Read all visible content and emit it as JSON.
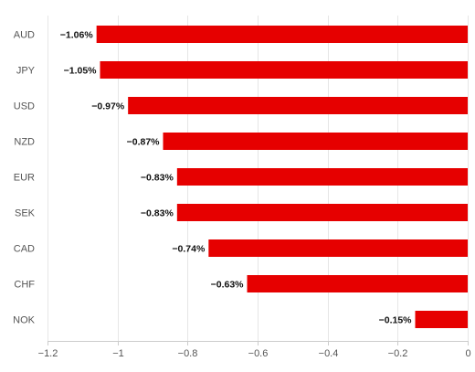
{
  "chart_data": {
    "type": "bar",
    "orientation": "horizontal",
    "categories": [
      "AUD",
      "JPY",
      "USD",
      "NZD",
      "EUR",
      "SEK",
      "CAD",
      "CHF",
      "NOK"
    ],
    "values": [
      -1.06,
      -1.05,
      -0.97,
      -0.87,
      -0.83,
      -0.83,
      -0.74,
      -0.63,
      -0.15
    ],
    "data_labels": [
      "−1.06%",
      "−1.05%",
      "−0.97%",
      "−0.87%",
      "−0.83%",
      "−0.83%",
      "−0.74%",
      "−0.63%",
      "−0.15%"
    ],
    "xlim": [
      -1.2,
      0
    ],
    "xticks": [
      -1.2,
      -1,
      -0.8,
      -0.6,
      -0.4,
      -0.2,
      0
    ],
    "xtick_labels": [
      "−1.2",
      "−1",
      "−0.8",
      "−0.6",
      "−0.4",
      "−0.2",
      "0"
    ],
    "bar_color": "#e60000",
    "grid": "vertical",
    "legend": "none"
  }
}
